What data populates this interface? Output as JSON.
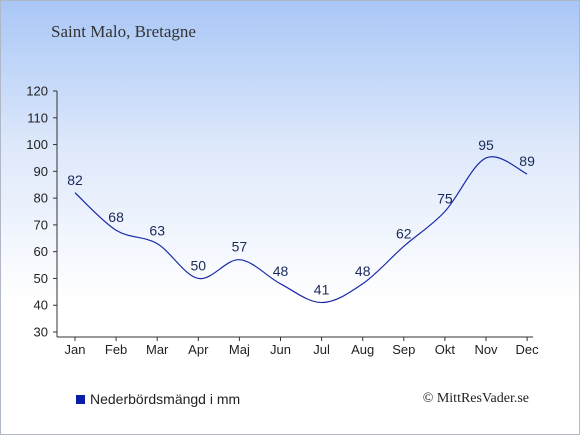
{
  "chart_data": {
    "type": "line",
    "title": "Saint Malo, Bretagne",
    "xlabel": "",
    "ylabel": "",
    "categories": [
      "Jan",
      "Feb",
      "Mar",
      "Apr",
      "Maj",
      "Jun",
      "Jul",
      "Aug",
      "Sep",
      "Okt",
      "Nov",
      "Dec"
    ],
    "series": [
      {
        "name": "Nederbördsmängd i mm",
        "values": [
          82,
          68,
          63,
          50,
          57,
          48,
          41,
          48,
          62,
          75,
          95,
          89
        ]
      }
    ],
    "ylim": [
      30,
      120
    ],
    "yticks": [
      30,
      40,
      50,
      60,
      70,
      80,
      90,
      100,
      110,
      120
    ],
    "grid": false,
    "legend_position": "bottom-left",
    "line_color": "#1a2aa8",
    "label_color": "#1a2a5a"
  },
  "legend": {
    "label": "Nederbördsmängd i mm",
    "swatch_color": "#0a1ea8"
  },
  "credit": "© MittResVader.se"
}
